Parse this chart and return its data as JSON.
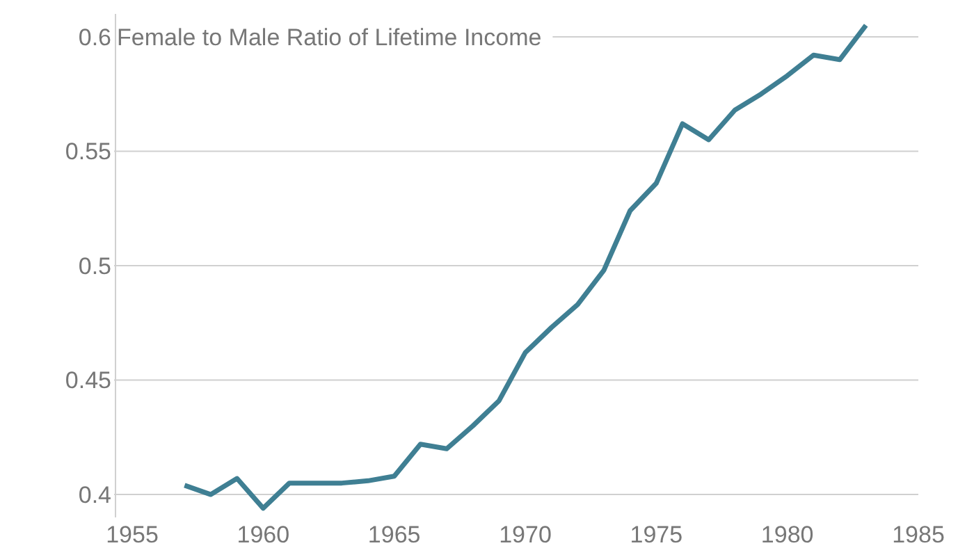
{
  "chart_data": {
    "type": "line",
    "ylabel": "Female to Male Ratio of Lifetime Income",
    "x": [
      1957,
      1958,
      1959,
      1960,
      1961,
      1962,
      1963,
      1964,
      1965,
      1966,
      1967,
      1968,
      1969,
      1970,
      1971,
      1972,
      1973,
      1974,
      1975,
      1976,
      1977,
      1978,
      1979,
      1980,
      1981,
      1982,
      1983
    ],
    "series": [
      {
        "color": "#3f7f93",
        "values": [
          0.404,
          0.4,
          0.407,
          0.394,
          0.405,
          0.405,
          0.405,
          0.406,
          0.408,
          0.422,
          0.42,
          0.43,
          0.441,
          0.462,
          0.473,
          0.483,
          0.498,
          0.524,
          0.536,
          0.562,
          0.555,
          0.568,
          0.575,
          0.583,
          0.592,
          0.59,
          0.605
        ]
      }
    ],
    "xlim": [
      1955,
      1985
    ],
    "xticks": [
      1955,
      1960,
      1965,
      1970,
      1975,
      1980,
      1985
    ],
    "ylim": [
      0.39,
      0.61
    ],
    "yticks": [
      0.4,
      0.45,
      0.5,
      0.55,
      0.6
    ],
    "grid": "y",
    "marker": "none",
    "line_style": "solid"
  }
}
